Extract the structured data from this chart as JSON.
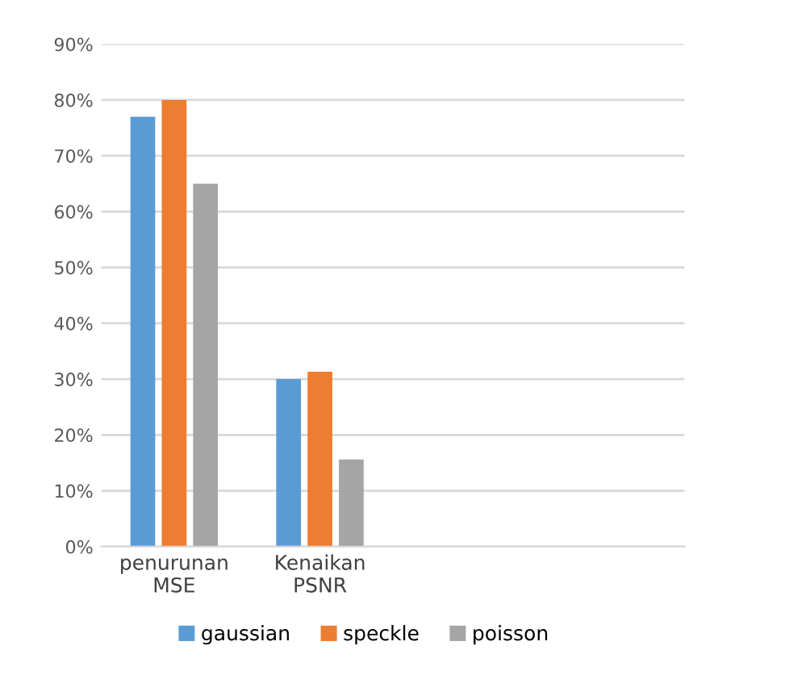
{
  "chart_data": {
    "type": "bar",
    "categories": [
      "penurunan\nMSE",
      "Kenaikan\nPSNR",
      null,
      null
    ],
    "series": [
      {
        "name": "gaussian",
        "color": "#5b9bd5",
        "values": [
          77,
          30,
          null,
          null
        ]
      },
      {
        "name": "speckle",
        "color": "#ed7d31",
        "values": [
          80,
          31.3,
          null,
          null
        ]
      },
      {
        "name": "poisson",
        "color": "#a5a5a5",
        "values": [
          65,
          15.6,
          null,
          null
        ]
      }
    ],
    "ylim": [
      0,
      90
    ],
    "yticks": [
      {
        "value": 0,
        "label": "0%"
      },
      {
        "value": 10,
        "label": "10%"
      },
      {
        "value": 20,
        "label": "20%"
      },
      {
        "value": 30,
        "label": "30%"
      },
      {
        "value": 40,
        "label": "40%"
      },
      {
        "value": 50,
        "label": "50%"
      },
      {
        "value": 60,
        "label": "60%"
      },
      {
        "value": 70,
        "label": "70%"
      },
      {
        "value": 80,
        "label": "80%"
      },
      {
        "value": 90,
        "label": "90%"
      }
    ],
    "grid": "y",
    "legend": "bottom"
  }
}
